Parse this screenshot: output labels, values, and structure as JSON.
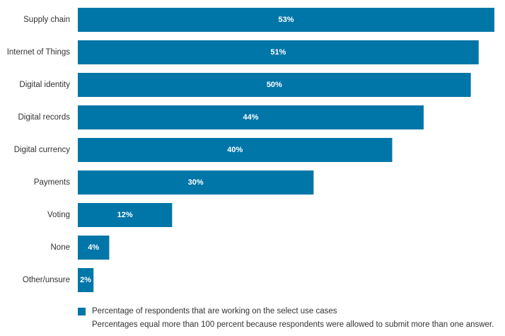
{
  "colors": {
    "bar": "#0076a8",
    "label_text": "#333333",
    "value_text": "#ffffff"
  },
  "chart_data": {
    "type": "bar",
    "orientation": "horizontal",
    "categories": [
      "Supply chain",
      "Internet of Things",
      "Digital identity",
      "Digital records",
      "Digital currency",
      "Payments",
      "Voting",
      "None",
      "Other/unsure"
    ],
    "values": [
      53,
      51,
      50,
      44,
      40,
      30,
      12,
      4,
      2
    ],
    "value_labels": [
      "53%",
      "51%",
      "50%",
      "44%",
      "40%",
      "30%",
      "12%",
      "4%",
      "2%"
    ],
    "unit": "%",
    "xlim": [
      0,
      53
    ],
    "grid": false,
    "legend": {
      "position": "bottom-left",
      "entries": [
        "Percentage of respondents that are working on the select use cases"
      ]
    }
  },
  "legend": {
    "label": "Percentage of respondents that are working on the select use cases",
    "note": "Percentages equal more than 100 percent because respondents were allowed to submit more than one answer."
  }
}
